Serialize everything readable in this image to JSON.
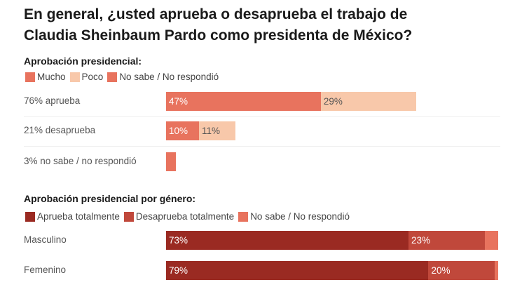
{
  "title_line1": "En general, ¿usted aprueba o desaprueba el trabajo de",
  "title_line2": "Claudia Sheinbaum Pardo como presidenta de México?",
  "chart_data": [
    {
      "type": "bar",
      "orientation": "horizontal",
      "stacked": true,
      "subtitle": "Aprobación presidencial:",
      "legend": [
        {
          "name": "Mucho",
          "color": "#e8735e"
        },
        {
          "name": "Poco",
          "color": "#f8c8aa"
        },
        {
          "name": "No sabe / No respondió",
          "color": "#e8735e"
        }
      ],
      "categories": [
        "76% aprueba",
        "21% desaprueba",
        "3% no sabe / no respondió"
      ],
      "rows": [
        [
          {
            "series": "Mucho",
            "value": 47,
            "label": "47%"
          },
          {
            "series": "Poco",
            "value": 29,
            "label": "29%"
          }
        ],
        [
          {
            "series": "Mucho",
            "value": 10,
            "label": "10%"
          },
          {
            "series": "Poco",
            "value": 11,
            "label": "11%"
          }
        ],
        [
          {
            "series": "No sabe / No respondió",
            "value": 3,
            "label": ""
          }
        ]
      ]
    },
    {
      "type": "bar",
      "orientation": "horizontal",
      "stacked": true,
      "subtitle": "Aprobación presidencial por género:",
      "legend": [
        {
          "name": "Aprueba totalmente",
          "color": "#9a2a22"
        },
        {
          "name": "Desaprueba totalmente",
          "color": "#c0483b"
        },
        {
          "name": "No sabe / No respondió",
          "color": "#e8735e"
        }
      ],
      "categories": [
        "Masculino",
        "Femenino"
      ],
      "rows": [
        [
          {
            "series": "Aprueba totalmente",
            "value": 73,
            "label": "73%"
          },
          {
            "series": "Desaprueba totalmente",
            "value": 23,
            "label": "23%"
          },
          {
            "series": "No sabe / No respondió",
            "value": 4,
            "label": ""
          }
        ],
        [
          {
            "series": "Aprueba totalmente",
            "value": 79,
            "label": "79%"
          },
          {
            "series": "Desaprueba totalmente",
            "value": 20,
            "label": "20%"
          },
          {
            "series": "No sabe / No respondió",
            "value": 1,
            "label": ""
          }
        ]
      ]
    }
  ]
}
